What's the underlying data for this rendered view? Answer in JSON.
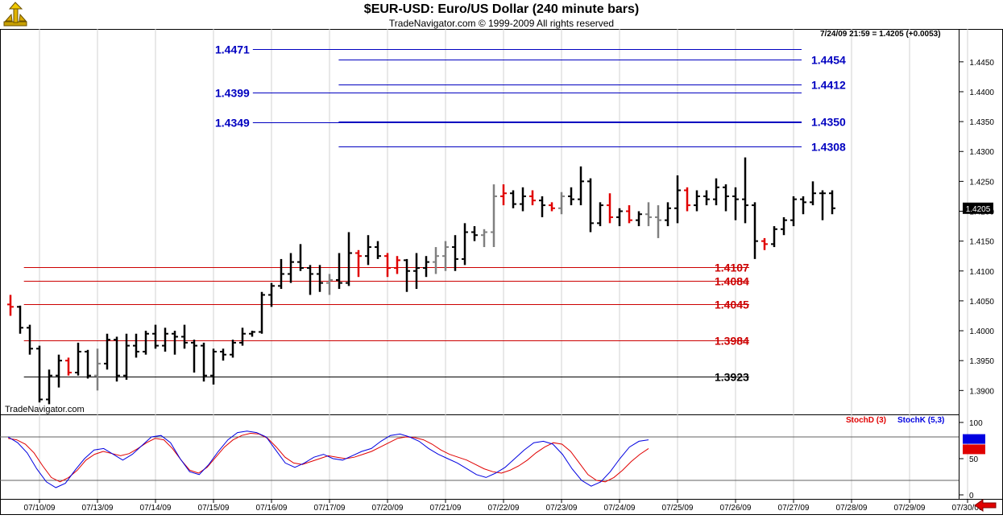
{
  "header": {
    "title": "$EUR-USD:  Euro/US Dollar  (240 minute bars)",
    "subtitle": "TradeNavigator.com © 1999-2009 All rights reserved",
    "readout": "7/24/09 21:59 = 1.4205 (+0.0053)",
    "watermark": "TradeNavigator.com"
  },
  "colors": {
    "bull_bar": "#000000",
    "bear_bar": "#e00000",
    "neutral_bar": "#808080",
    "blue_level": "#0000c0",
    "red_level": "#cc0000",
    "stoch_d": "#e00000",
    "stoch_k": "#0000e0"
  },
  "chart_data": [
    {
      "type": "ohlc",
      "ylim": [
        1.386,
        1.4505
      ],
      "price_ticks": [
        "1.3900",
        "1.3950",
        "1.4000",
        "1.4050",
        "1.4100",
        "1.4150",
        "1.4200",
        "1.4250",
        "1.4300",
        "1.4350",
        "1.4400",
        "1.4450"
      ],
      "last_price": "1.4205",
      "dates": [
        "07/10/09",
        "07/13/09",
        "07/14/09",
        "07/15/09",
        "07/16/09",
        "07/17/09",
        "07/20/09",
        "07/21/09",
        "07/22/09",
        "07/23/09",
        "07/24/09",
        "07/25/09",
        "07/26/09",
        "07/27/09",
        "07/28/09",
        "07/29/09",
        "07/30/09"
      ],
      "bars": [
        {
          "o": 1.4044,
          "h": 1.406,
          "l": 1.4025,
          "c": 1.404,
          "d": "bear"
        },
        {
          "o": 1.404,
          "h": 1.4042,
          "l": 1.3995,
          "c": 1.4005,
          "d": "bull"
        },
        {
          "o": 1.4005,
          "h": 1.401,
          "l": 1.396,
          "c": 1.397,
          "d": "bull"
        },
        {
          "o": 1.397,
          "h": 1.3975,
          "l": 1.388,
          "c": 1.3885,
          "d": "bull"
        },
        {
          "o": 1.3885,
          "h": 1.3935,
          "l": 1.3877,
          "c": 1.3925,
          "d": "bull"
        },
        {
          "o": 1.3925,
          "h": 1.396,
          "l": 1.3905,
          "c": 1.395,
          "d": "bull"
        },
        {
          "o": 1.395,
          "h": 1.3955,
          "l": 1.3925,
          "c": 1.393,
          "d": "bear"
        },
        {
          "o": 1.393,
          "h": 1.398,
          "l": 1.3925,
          "c": 1.3965,
          "d": "bull"
        },
        {
          "o": 1.3965,
          "h": 1.3968,
          "l": 1.392,
          "c": 1.3925,
          "d": "bull"
        },
        {
          "o": 1.3925,
          "h": 1.397,
          "l": 1.39,
          "c": 1.3945,
          "d": "neutral"
        },
        {
          "o": 1.3945,
          "h": 1.3995,
          "l": 1.3935,
          "c": 1.3985,
          "d": "bull"
        },
        {
          "o": 1.3985,
          "h": 1.399,
          "l": 1.3915,
          "c": 1.3925,
          "d": "bull"
        },
        {
          "o": 1.3925,
          "h": 1.3995,
          "l": 1.3918,
          "c": 1.3975,
          "d": "bull"
        },
        {
          "o": 1.3975,
          "h": 1.3995,
          "l": 1.3955,
          "c": 1.3965,
          "d": "bull"
        },
        {
          "o": 1.3965,
          "h": 1.4,
          "l": 1.396,
          "c": 1.3995,
          "d": "bull"
        },
        {
          "o": 1.3995,
          "h": 1.401,
          "l": 1.397,
          "c": 1.3975,
          "d": "bull"
        },
        {
          "o": 1.3975,
          "h": 1.4005,
          "l": 1.3965,
          "c": 1.3995,
          "d": "bull"
        },
        {
          "o": 1.3995,
          "h": 1.4,
          "l": 1.396,
          "c": 1.399,
          "d": "bull"
        },
        {
          "o": 1.399,
          "h": 1.401,
          "l": 1.397,
          "c": 1.398,
          "d": "bull"
        },
        {
          "o": 1.398,
          "h": 1.3985,
          "l": 1.393,
          "c": 1.3975,
          "d": "bull"
        },
        {
          "o": 1.3975,
          "h": 1.398,
          "l": 1.3915,
          "c": 1.3925,
          "d": "bull"
        },
        {
          "o": 1.3925,
          "h": 1.397,
          "l": 1.391,
          "c": 1.3965,
          "d": "bull"
        },
        {
          "o": 1.3965,
          "h": 1.397,
          "l": 1.395,
          "c": 1.396,
          "d": "bull"
        },
        {
          "o": 1.396,
          "h": 1.3985,
          "l": 1.3955,
          "c": 1.398,
          "d": "bull"
        },
        {
          "o": 1.398,
          "h": 1.4005,
          "l": 1.3975,
          "c": 1.3995,
          "d": "bull"
        },
        {
          "o": 1.3995,
          "h": 1.4,
          "l": 1.399,
          "c": 1.3998,
          "d": "bull"
        },
        {
          "o": 1.3998,
          "h": 1.4065,
          "l": 1.3995,
          "c": 1.406,
          "d": "bull"
        },
        {
          "o": 1.406,
          "h": 1.408,
          "l": 1.404,
          "c": 1.4075,
          "d": "bull"
        },
        {
          "o": 1.4075,
          "h": 1.412,
          "l": 1.407,
          "c": 1.4095,
          "d": "bull"
        },
        {
          "o": 1.4095,
          "h": 1.413,
          "l": 1.408,
          "c": 1.4115,
          "d": "bull"
        },
        {
          "o": 1.4115,
          "h": 1.4145,
          "l": 1.41,
          "c": 1.4105,
          "d": "bull"
        },
        {
          "o": 1.4105,
          "h": 1.411,
          "l": 1.406,
          "c": 1.4095,
          "d": "bull"
        },
        {
          "o": 1.4095,
          "h": 1.411,
          "l": 1.4065,
          "c": 1.408,
          "d": "bull"
        },
        {
          "o": 1.408,
          "h": 1.4095,
          "l": 1.406,
          "c": 1.4085,
          "d": "neutral"
        },
        {
          "o": 1.4085,
          "h": 1.413,
          "l": 1.407,
          "c": 1.408,
          "d": "bull"
        },
        {
          "o": 1.408,
          "h": 1.4165,
          "l": 1.4075,
          "c": 1.413,
          "d": "bull"
        },
        {
          "o": 1.413,
          "h": 1.4135,
          "l": 1.409,
          "c": 1.4125,
          "d": "bear"
        },
        {
          "o": 1.4125,
          "h": 1.416,
          "l": 1.411,
          "c": 1.414,
          "d": "bull"
        },
        {
          "o": 1.414,
          "h": 1.415,
          "l": 1.412,
          "c": 1.4125,
          "d": "bull"
        },
        {
          "o": 1.4125,
          "h": 1.413,
          "l": 1.409,
          "c": 1.4105,
          "d": "bear"
        },
        {
          "o": 1.4105,
          "h": 1.4125,
          "l": 1.4095,
          "c": 1.4118,
          "d": "bear"
        },
        {
          "o": 1.4118,
          "h": 1.412,
          "l": 1.4065,
          "c": 1.41,
          "d": "bull"
        },
        {
          "o": 1.41,
          "h": 1.413,
          "l": 1.407,
          "c": 1.4105,
          "d": "bull"
        },
        {
          "o": 1.4105,
          "h": 1.4125,
          "l": 1.409,
          "c": 1.4115,
          "d": "bull"
        },
        {
          "o": 1.4115,
          "h": 1.414,
          "l": 1.4095,
          "c": 1.4125,
          "d": "neutral"
        },
        {
          "o": 1.4125,
          "h": 1.415,
          "l": 1.41,
          "c": 1.414,
          "d": "neutral"
        },
        {
          "o": 1.414,
          "h": 1.416,
          "l": 1.41,
          "c": 1.412,
          "d": "bull"
        },
        {
          "o": 1.412,
          "h": 1.418,
          "l": 1.411,
          "c": 1.4165,
          "d": "bull"
        },
        {
          "o": 1.4165,
          "h": 1.4175,
          "l": 1.415,
          "c": 1.416,
          "d": "bull"
        },
        {
          "o": 1.416,
          "h": 1.417,
          "l": 1.414,
          "c": 1.4165,
          "d": "neutral"
        },
        {
          "o": 1.4165,
          "h": 1.4245,
          "l": 1.414,
          "c": 1.4225,
          "d": "neutral"
        },
        {
          "o": 1.4225,
          "h": 1.4245,
          "l": 1.421,
          "c": 1.423,
          "d": "bear"
        },
        {
          "o": 1.423,
          "h": 1.4235,
          "l": 1.4205,
          "c": 1.4212,
          "d": "bull"
        },
        {
          "o": 1.4212,
          "h": 1.424,
          "l": 1.42,
          "c": 1.4225,
          "d": "bull"
        },
        {
          "o": 1.4225,
          "h": 1.4235,
          "l": 1.421,
          "c": 1.4218,
          "d": "bear"
        },
        {
          "o": 1.4218,
          "h": 1.4225,
          "l": 1.419,
          "c": 1.421,
          "d": "bull"
        },
        {
          "o": 1.421,
          "h": 1.4215,
          "l": 1.42,
          "c": 1.4205,
          "d": "bear"
        },
        {
          "o": 1.4205,
          "h": 1.4232,
          "l": 1.4195,
          "c": 1.4225,
          "d": "neutral"
        },
        {
          "o": 1.4225,
          "h": 1.424,
          "l": 1.421,
          "c": 1.422,
          "d": "bull"
        },
        {
          "o": 1.422,
          "h": 1.4275,
          "l": 1.421,
          "c": 1.425,
          "d": "bull"
        },
        {
          "o": 1.425,
          "h": 1.4255,
          "l": 1.4165,
          "c": 1.418,
          "d": "bull"
        },
        {
          "o": 1.418,
          "h": 1.4215,
          "l": 1.4175,
          "c": 1.421,
          "d": "bull"
        },
        {
          "o": 1.421,
          "h": 1.423,
          "l": 1.418,
          "c": 1.419,
          "d": "bear"
        },
        {
          "o": 1.419,
          "h": 1.4205,
          "l": 1.4175,
          "c": 1.42,
          "d": "bull"
        },
        {
          "o": 1.42,
          "h": 1.421,
          "l": 1.418,
          "c": 1.4185,
          "d": "bear"
        },
        {
          "o": 1.4185,
          "h": 1.42,
          "l": 1.4175,
          "c": 1.4195,
          "d": "bull"
        },
        {
          "o": 1.4195,
          "h": 1.4215,
          "l": 1.4175,
          "c": 1.419,
          "d": "neutral"
        },
        {
          "o": 1.419,
          "h": 1.421,
          "l": 1.4155,
          "c": 1.4185,
          "d": "neutral"
        },
        {
          "o": 1.4185,
          "h": 1.4215,
          "l": 1.4175,
          "c": 1.4205,
          "d": "bull"
        },
        {
          "o": 1.4205,
          "h": 1.426,
          "l": 1.418,
          "c": 1.4235,
          "d": "bull"
        },
        {
          "o": 1.4235,
          "h": 1.424,
          "l": 1.42,
          "c": 1.421,
          "d": "bear"
        },
        {
          "o": 1.421,
          "h": 1.4235,
          "l": 1.42,
          "c": 1.4225,
          "d": "bull"
        },
        {
          "o": 1.4225,
          "h": 1.4235,
          "l": 1.421,
          "c": 1.422,
          "d": "bull"
        },
        {
          "o": 1.422,
          "h": 1.4255,
          "l": 1.421,
          "c": 1.424,
          "d": "bull"
        },
        {
          "o": 1.424,
          "h": 1.4245,
          "l": 1.42,
          "c": 1.4225,
          "d": "bull"
        },
        {
          "o": 1.4225,
          "h": 1.424,
          "l": 1.4185,
          "c": 1.422,
          "d": "bull"
        },
        {
          "o": 1.422,
          "h": 1.429,
          "l": 1.418,
          "c": 1.421,
          "d": "bull"
        },
        {
          "o": 1.421,
          "h": 1.4215,
          "l": 1.412,
          "c": 1.415,
          "d": "bull"
        },
        {
          "o": 1.415,
          "h": 1.4155,
          "l": 1.4135,
          "c": 1.4145,
          "d": "bear"
        },
        {
          "o": 1.4145,
          "h": 1.4175,
          "l": 1.414,
          "c": 1.417,
          "d": "bull"
        },
        {
          "o": 1.417,
          "h": 1.419,
          "l": 1.416,
          "c": 1.4185,
          "d": "bull"
        },
        {
          "o": 1.4185,
          "h": 1.4225,
          "l": 1.4175,
          "c": 1.422,
          "d": "bull"
        },
        {
          "o": 1.422,
          "h": 1.4225,
          "l": 1.4195,
          "c": 1.4215,
          "d": "bull"
        },
        {
          "o": 1.4215,
          "h": 1.425,
          "l": 1.421,
          "c": 1.423,
          "d": "bull"
        },
        {
          "o": 1.423,
          "h": 1.4235,
          "l": 1.4185,
          "c": 1.423,
          "d": "bull"
        },
        {
          "o": 1.423,
          "h": 1.4235,
          "l": 1.4195,
          "c": 1.4205,
          "d": "bull"
        }
      ],
      "levels": [
        {
          "value": 1.4471,
          "label": "1.4471",
          "color": "blue",
          "start": 0.26,
          "label_side": "left"
        },
        {
          "value": 1.4454,
          "label": "1.4454",
          "color": "blue",
          "start": 0.35,
          "label_side": "right"
        },
        {
          "value": 1.4412,
          "label": "1.4412",
          "color": "blue",
          "start": 0.35,
          "label_side": "right"
        },
        {
          "value": 1.4399,
          "label": "1.4399",
          "color": "blue",
          "start": 0.26,
          "label_side": "left"
        },
        {
          "value": 1.435,
          "label": "1.4350",
          "color": "blue",
          "start": 0.35,
          "label_side": "right"
        },
        {
          "value": 1.4349,
          "label": "1.4349",
          "color": "blue",
          "start": 0.26,
          "label_side": "left"
        },
        {
          "value": 1.4308,
          "label": "1.4308",
          "color": "blue",
          "start": 0.35,
          "label_side": "right"
        },
        {
          "value": 1.4107,
          "label": "1.4107",
          "color": "red",
          "start": 0.02,
          "label_side": "right"
        },
        {
          "value": 1.4084,
          "label": "1.4084",
          "color": "red",
          "start": 0.02,
          "label_side": "right"
        },
        {
          "value": 1.4045,
          "label": "1.4045",
          "color": "red",
          "start": 0.02,
          "label_side": "right"
        },
        {
          "value": 1.3984,
          "label": "1.3984",
          "color": "red",
          "start": 0.02,
          "label_side": "right"
        },
        {
          "value": 1.3923,
          "label": "1.3923",
          "color": "black",
          "start": 0.02,
          "label_side": "right"
        }
      ]
    },
    {
      "type": "line",
      "indicator_ticks": [
        "100",
        "50",
        "0"
      ],
      "ylim": [
        0,
        100
      ],
      "reference_lines": [
        80,
        20
      ],
      "series": [
        {
          "name": "StochD (3)",
          "color": "red",
          "values": [
            78,
            76,
            70,
            58,
            40,
            24,
            18,
            24,
            34,
            48,
            56,
            60,
            57,
            54,
            57,
            64,
            72,
            78,
            76,
            64,
            48,
            34,
            30,
            38,
            52,
            66,
            76,
            82,
            85,
            84,
            78,
            66,
            52,
            44,
            42,
            46,
            50,
            54,
            52,
            50,
            52,
            56,
            60,
            66,
            72,
            78,
            80,
            79,
            76,
            70,
            62,
            56,
            52,
            48,
            42,
            36,
            32,
            30,
            34,
            40,
            48,
            58,
            66,
            72,
            70,
            60,
            44,
            28,
            20,
            18,
            24,
            34,
            46,
            56,
            64
          ]
        },
        {
          "name": "StochK (5,3)",
          "color": "blue",
          "values": [
            80,
            72,
            58,
            36,
            18,
            10,
            16,
            34,
            50,
            62,
            64,
            56,
            48,
            56,
            68,
            80,
            82,
            72,
            50,
            32,
            28,
            42,
            60,
            76,
            86,
            88,
            86,
            80,
            62,
            44,
            38,
            44,
            52,
            56,
            50,
            48,
            54,
            60,
            64,
            74,
            82,
            84,
            80,
            74,
            64,
            56,
            50,
            44,
            36,
            28,
            24,
            30,
            38,
            50,
            62,
            72,
            74,
            70,
            56,
            36,
            20,
            12,
            18,
            32,
            50,
            66,
            74,
            76
          ]
        }
      ]
    }
  ]
}
